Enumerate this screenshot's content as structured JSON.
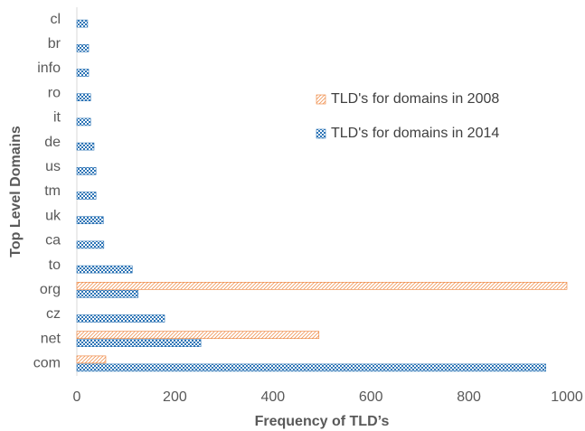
{
  "chart_data": {
    "type": "barh",
    "categories": [
      "com",
      "net",
      "cz",
      "org",
      "to",
      "ca",
      "uk",
      "tm",
      "us",
      "de",
      "it",
      "ro",
      "info",
      "br",
      "cl"
    ],
    "series": [
      {
        "name": "TLD's for domains in 2008",
        "color": "#ed7d31",
        "values": [
          59,
          494,
          null,
          1000,
          null,
          null,
          null,
          null,
          null,
          null,
          null,
          null,
          null,
          null,
          null
        ]
      },
      {
        "name": "TLD's for domains in 2014",
        "color": "#2e75b6",
        "values": [
          957,
          253,
          179,
          125,
          113,
          55,
          54,
          39,
          39,
          35,
          28,
          28,
          24,
          24,
          22
        ]
      }
    ],
    "xlim": [
      0,
      1000
    ],
    "xticks": [
      0,
      200,
      400,
      600,
      800,
      1000
    ],
    "xlabel": "Frequency of TLD’s",
    "ylabel": "Top Level Domains"
  }
}
